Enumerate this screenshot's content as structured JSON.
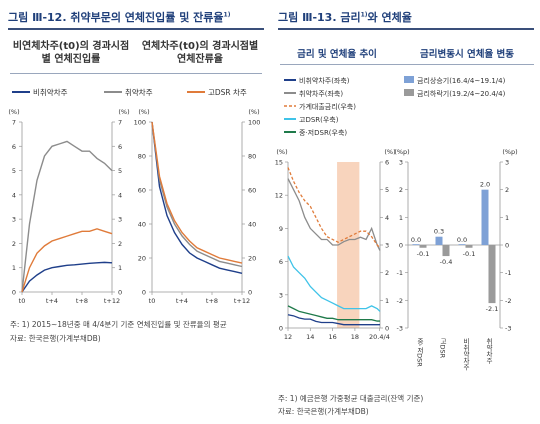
{
  "left": {
    "title_prefix": "그림 Ⅲ-12.",
    "title": "취약부문의 연체진입률 및 잔류율",
    "title_sup": "1)",
    "note": "주: 1) 2015~18년중 매 4/4분기 기준 연체진입률 및 잔류율의 평균",
    "source": "자료: 한국은행(가계부채DB)"
  },
  "right": {
    "title_prefix": "그림 Ⅲ-13.",
    "title_a": "금리",
    "title_sup": "1)",
    "title_b": "와 연체율",
    "sub1": "금리 및 연체율 추이",
    "sub2": "금리변동시 연체율 변동",
    "note": "주: 1) 예금은행 가중평균 대출금리(잔액 기준)",
    "source": "자료: 한국은행(가계부채DB)"
  },
  "colors": {
    "blue": "#1f3f8a",
    "gray": "#8c8c8c",
    "orange": "#e07b3a",
    "teal": "#2aa198",
    "cyan": "#3fc3e8",
    "green": "#1f7a4a",
    "shade": "#f8d4bd",
    "lightblue": "#7ea1d6",
    "midgray": "#9a9a9a"
  },
  "chart_data": [
    {
      "type": "line",
      "title": "비연체차주(t0)의 경과시점별 연체진입률",
      "ylabel_left": "(%)",
      "ylabel_right": "(%)",
      "ylim": [
        0,
        7
      ],
      "yticks": [
        0,
        1,
        2,
        3,
        4,
        5,
        6,
        7
      ],
      "x": [
        0,
        1,
        2,
        3,
        4,
        5,
        6,
        7,
        8,
        9,
        10,
        11,
        12
      ],
      "xtick_labels": [
        "t0",
        "t+4",
        "t+8",
        "t+12"
      ],
      "legend": [
        "비취약차주",
        "취약차주",
        "고DSR 차주"
      ],
      "series": [
        {
          "name": "비취약차주",
          "values": [
            0,
            0.45,
            0.7,
            0.9,
            1.0,
            1.05,
            1.1,
            1.12,
            1.15,
            1.18,
            1.2,
            1.22,
            1.2
          ]
        },
        {
          "name": "취약차주",
          "values": [
            0,
            2.8,
            4.6,
            5.6,
            6.0,
            6.1,
            6.2,
            6.0,
            5.8,
            5.8,
            5.5,
            5.3,
            5.0
          ]
        },
        {
          "name": "고DSR 차주",
          "values": [
            0,
            1.0,
            1.6,
            1.9,
            2.1,
            2.2,
            2.3,
            2.4,
            2.5,
            2.5,
            2.6,
            2.5,
            2.4
          ]
        }
      ]
    },
    {
      "type": "line",
      "title": "연체차주(t0)의 경과시점별 연체잔류율",
      "ylabel_left": "(%)",
      "ylabel_right": "(%)",
      "ylim": [
        0,
        100
      ],
      "yticks": [
        0,
        20,
        40,
        60,
        80,
        100
      ],
      "x": [
        0,
        1,
        2,
        3,
        4,
        5,
        6,
        7,
        8,
        9,
        10,
        11,
        12
      ],
      "xtick_labels": [
        "t0",
        "t+4",
        "t+8",
        "t+12"
      ],
      "series": [
        {
          "name": "비취약차주",
          "values": [
            100,
            62,
            45,
            35,
            28,
            23,
            20,
            18,
            16,
            14,
            13,
            12,
            11
          ]
        },
        {
          "name": "취약차주",
          "values": [
            100,
            66,
            50,
            40,
            33,
            28,
            24,
            22,
            20,
            18,
            17,
            16,
            15
          ]
        },
        {
          "name": "고DSR 차주",
          "values": [
            100,
            68,
            52,
            42,
            35,
            30,
            26,
            24,
            22,
            20,
            19,
            18,
            17
          ]
        }
      ]
    },
    {
      "type": "line",
      "title": "금리 및 연체율 추이",
      "ylabel_left": "(%)",
      "ylabel_right": "(%)",
      "ylim_left": [
        0,
        15
      ],
      "yticks_left": [
        0,
        3,
        6,
        9,
        12,
        15
      ],
      "ylim_right": [
        0,
        6
      ],
      "yticks_right": [
        0,
        1,
        2,
        3,
        4,
        5,
        6
      ],
      "x": [
        12,
        12.5,
        13,
        13.5,
        14,
        14.5,
        15,
        15.5,
        16,
        16.5,
        17,
        17.5,
        18,
        18.5,
        19,
        19.5,
        20,
        20.25
      ],
      "xtick_labels": [
        "12",
        "14",
        "16",
        "18",
        "20.4/4"
      ],
      "shade": [
        16.4,
        18.4
      ],
      "legend": [
        "비취약차주(좌축)",
        "취약차주(좌축)",
        "가계대출금리(우축)",
        "고DSR(우축)",
        "중·저DSR(우축)"
      ],
      "series": [
        {
          "name": "비취약차주(좌축)",
          "axis": "left",
          "values": [
            1.2,
            1.1,
            0.9,
            0.8,
            0.8,
            0.6,
            0.5,
            0.5,
            0.5,
            0.4,
            0.3,
            0.3,
            0.3,
            0.3,
            0.3,
            0.3,
            0.3,
            0.3
          ]
        },
        {
          "name": "취약차주(좌축)",
          "axis": "left",
          "values": [
            13.5,
            12.5,
            11.5,
            10.0,
            9.0,
            8.5,
            8.0,
            8.0,
            7.5,
            7.5,
            7.8,
            8.0,
            8.0,
            8.2,
            8.0,
            9.0,
            7.5,
            7.0
          ]
        },
        {
          "name": "가계대출금리(우축)",
          "axis": "right",
          "values": [
            5.8,
            5.3,
            4.9,
            4.6,
            4.4,
            4.0,
            3.6,
            3.3,
            3.2,
            3.1,
            3.2,
            3.3,
            3.4,
            3.5,
            3.5,
            3.3,
            3.0,
            2.9
          ]
        },
        {
          "name": "고DSR(우축)",
          "axis": "right",
          "values": [
            2.6,
            2.2,
            2.0,
            1.8,
            1.5,
            1.3,
            1.1,
            1.0,
            0.9,
            0.8,
            0.7,
            0.7,
            0.7,
            0.7,
            0.7,
            0.8,
            0.7,
            0.6
          ]
        },
        {
          "name": "중·저DSR(우축)",
          "axis": "right",
          "values": [
            0.8,
            0.7,
            0.6,
            0.55,
            0.5,
            0.45,
            0.4,
            0.35,
            0.35,
            0.3,
            0.3,
            0.3,
            0.3,
            0.3,
            0.3,
            0.3,
            0.25,
            0.25
          ]
        }
      ]
    },
    {
      "type": "bar",
      "title": "금리변동시 연체율 변동",
      "ylabel_left": "(%p)",
      "ylabel_right": "(%p)",
      "ylim": [
        -3,
        3
      ],
      "yticks": [
        -3,
        -2,
        -1,
        0,
        1,
        2,
        3
      ],
      "categories": [
        "중·저DSR",
        "고DSR",
        "비취약차주",
        "취약차주"
      ],
      "legend": [
        "금리상승기(16.4/4~19.1/4)",
        "금리하락기(19.2/4~20.4/4)"
      ],
      "series": [
        {
          "name": "금리상승기(16.4/4~19.1/4)",
          "values": [
            0.0,
            0.3,
            0.0,
            2.0
          ]
        },
        {
          "name": "금리하락기(19.2/4~20.4/4)",
          "values": [
            -0.1,
            -0.4,
            -0.1,
            -2.1
          ]
        }
      ],
      "value_labels": [
        [
          "0.0",
          "0.3",
          "0.0",
          "2.0"
        ],
        [
          "-0.1",
          "-0.4",
          "-0.1",
          "-2.1"
        ]
      ]
    }
  ]
}
